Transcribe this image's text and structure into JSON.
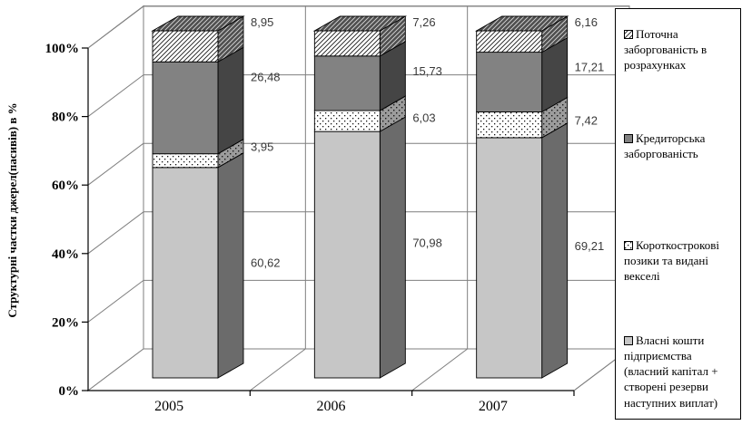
{
  "chart_data": {
    "type": "bar",
    "subtype": "3d-stacked-percent-column",
    "title": "",
    "xlabel": "",
    "ylabel": "Структурні частки джерел(пасивів) в %",
    "y_ticks": [
      "0%",
      "20%",
      "40%",
      "60%",
      "80%",
      "100%"
    ],
    "ylim": [
      0,
      100
    ],
    "grid": true,
    "legend_position": "right",
    "decimal_separator": ",",
    "categories": [
      "2005",
      "2006",
      "2007"
    ],
    "series": [
      {
        "name": "Власні кошти підприємства (власний капітал + створені резерви наступних виплат)",
        "pattern": "solid-light",
        "values": [
          60.62,
          70.98,
          69.21
        ]
      },
      {
        "name": "Короткострокові позики та видані векселі",
        "pattern": "dots",
        "values": [
          3.95,
          6.03,
          7.42
        ]
      },
      {
        "name": "Кредиторська заборгованість",
        "pattern": "solid-dark",
        "values": [
          26.48,
          15.73,
          17.21
        ]
      },
      {
        "name": "Поточна заборгованість в розрахунках",
        "pattern": "hatch",
        "values": [
          8.95,
          7.26,
          6.16
        ]
      }
    ],
    "colors": {
      "light_gray_fill": "#c6c6c6",
      "light_gray_side": "#6b6b6b",
      "dark_gray_fill": "#828282",
      "dark_gray_side": "#454545",
      "label_text": "#3a3a3a",
      "grid_line": "#7f7f7f",
      "axis_line": "#000000"
    }
  }
}
